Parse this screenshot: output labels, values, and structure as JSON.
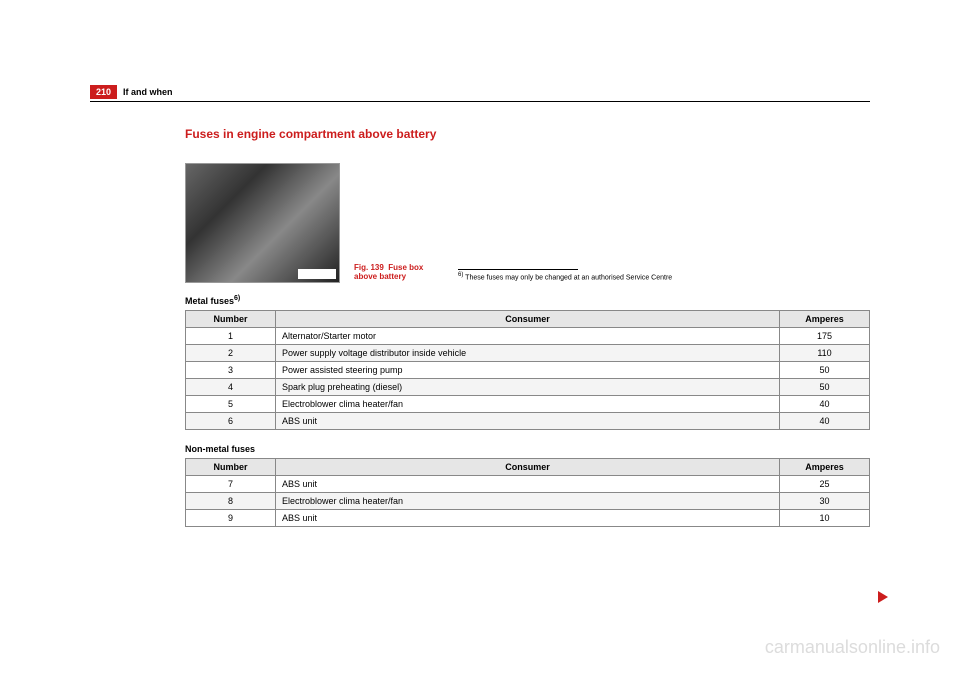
{
  "page": {
    "number": "210",
    "section": "If and when"
  },
  "title": "Fuses in engine compartment above battery",
  "figure": {
    "caption_prefix": "Fig. 139",
    "caption_text": "Fuse box above battery"
  },
  "footnote": {
    "marker": "6)",
    "text": "These fuses may only be changed at an authorised Service Centre"
  },
  "table1": {
    "label": "Metal fuses",
    "label_sup": "6)",
    "headers": {
      "num": "Number",
      "consumer": "Consumer",
      "amp": "Amperes"
    },
    "rows": [
      {
        "num": "1",
        "consumer": "Alternator/Starter motor",
        "amp": "175"
      },
      {
        "num": "2",
        "consumer": "Power supply voltage distributor inside vehicle",
        "amp": "110"
      },
      {
        "num": "3",
        "consumer": "Power assisted steering pump",
        "amp": "50"
      },
      {
        "num": "4",
        "consumer": "Spark plug preheating (diesel)",
        "amp": "50"
      },
      {
        "num": "5",
        "consumer": "Electroblower clima heater/fan",
        "amp": "40"
      },
      {
        "num": "6",
        "consumer": "ABS unit",
        "amp": "40"
      }
    ]
  },
  "table2": {
    "label": "Non-metal fuses",
    "headers": {
      "num": "Number",
      "consumer": "Consumer",
      "amp": "Amperes"
    },
    "rows": [
      {
        "num": "7",
        "consumer": "ABS unit",
        "amp": "25"
      },
      {
        "num": "8",
        "consumer": "Electroblower clima heater/fan",
        "amp": "30"
      },
      {
        "num": "9",
        "consumer": "ABS unit",
        "amp": "10"
      }
    ]
  },
  "watermark": "carmanualsonline.info"
}
